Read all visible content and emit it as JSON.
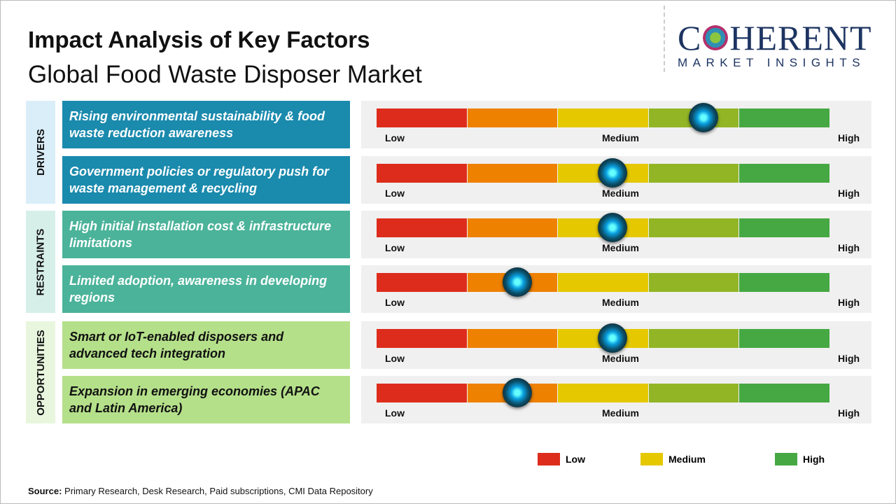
{
  "title": "Impact Analysis of Key Factors",
  "subtitle": "Global Food Waste Disposer Market",
  "logo": {
    "main_left": "C",
    "main_right": "HERENT",
    "sub": "MARKET INSIGHTS"
  },
  "scale_labels": {
    "low": "Low",
    "medium": "Medium",
    "high": "High"
  },
  "colors": {
    "segments": [
      "#dd2c1c",
      "#ee8100",
      "#e5c800",
      "#92b526",
      "#46a843"
    ],
    "drivers": "#1a8aad",
    "restraints": "#4bb39a",
    "opportunities": "#b5e08a"
  },
  "chart_data": {
    "type": "gauge",
    "scale": [
      "Low",
      "Medium",
      "High"
    ],
    "range": [
      0,
      1
    ],
    "categories": [
      {
        "name": "DRIVERS",
        "factors": [
          {
            "label": "Rising environmental sustainability & food waste reduction awareness",
            "value": 0.72
          },
          {
            "label": "Government policies or regulatory push for waste management & recycling",
            "value": 0.52
          }
        ]
      },
      {
        "name": "RESTRAINTS",
        "factors": [
          {
            "label": "High initial installation cost & infrastructure limitations",
            "value": 0.52
          },
          {
            "label": "Limited adoption, awareness in developing regions",
            "value": 0.31
          }
        ]
      },
      {
        "name": "OPPORTUNITIES",
        "factors": [
          {
            "label": "Smart or IoT-enabled disposers and advanced tech integration",
            "value": 0.52
          },
          {
            "label": "Expansion in emerging economies (APAC and Latin America)",
            "value": 0.31
          }
        ]
      }
    ]
  },
  "legend": [
    {
      "label": "Low",
      "color": "#dd2c1c"
    },
    {
      "label": "Medium",
      "color": "#e5c800"
    },
    {
      "label": "High",
      "color": "#46a843"
    }
  ],
  "source": {
    "label": "Source:",
    "text": " Primary Research, Desk Research, Paid subscriptions, CMI Data Repository"
  }
}
